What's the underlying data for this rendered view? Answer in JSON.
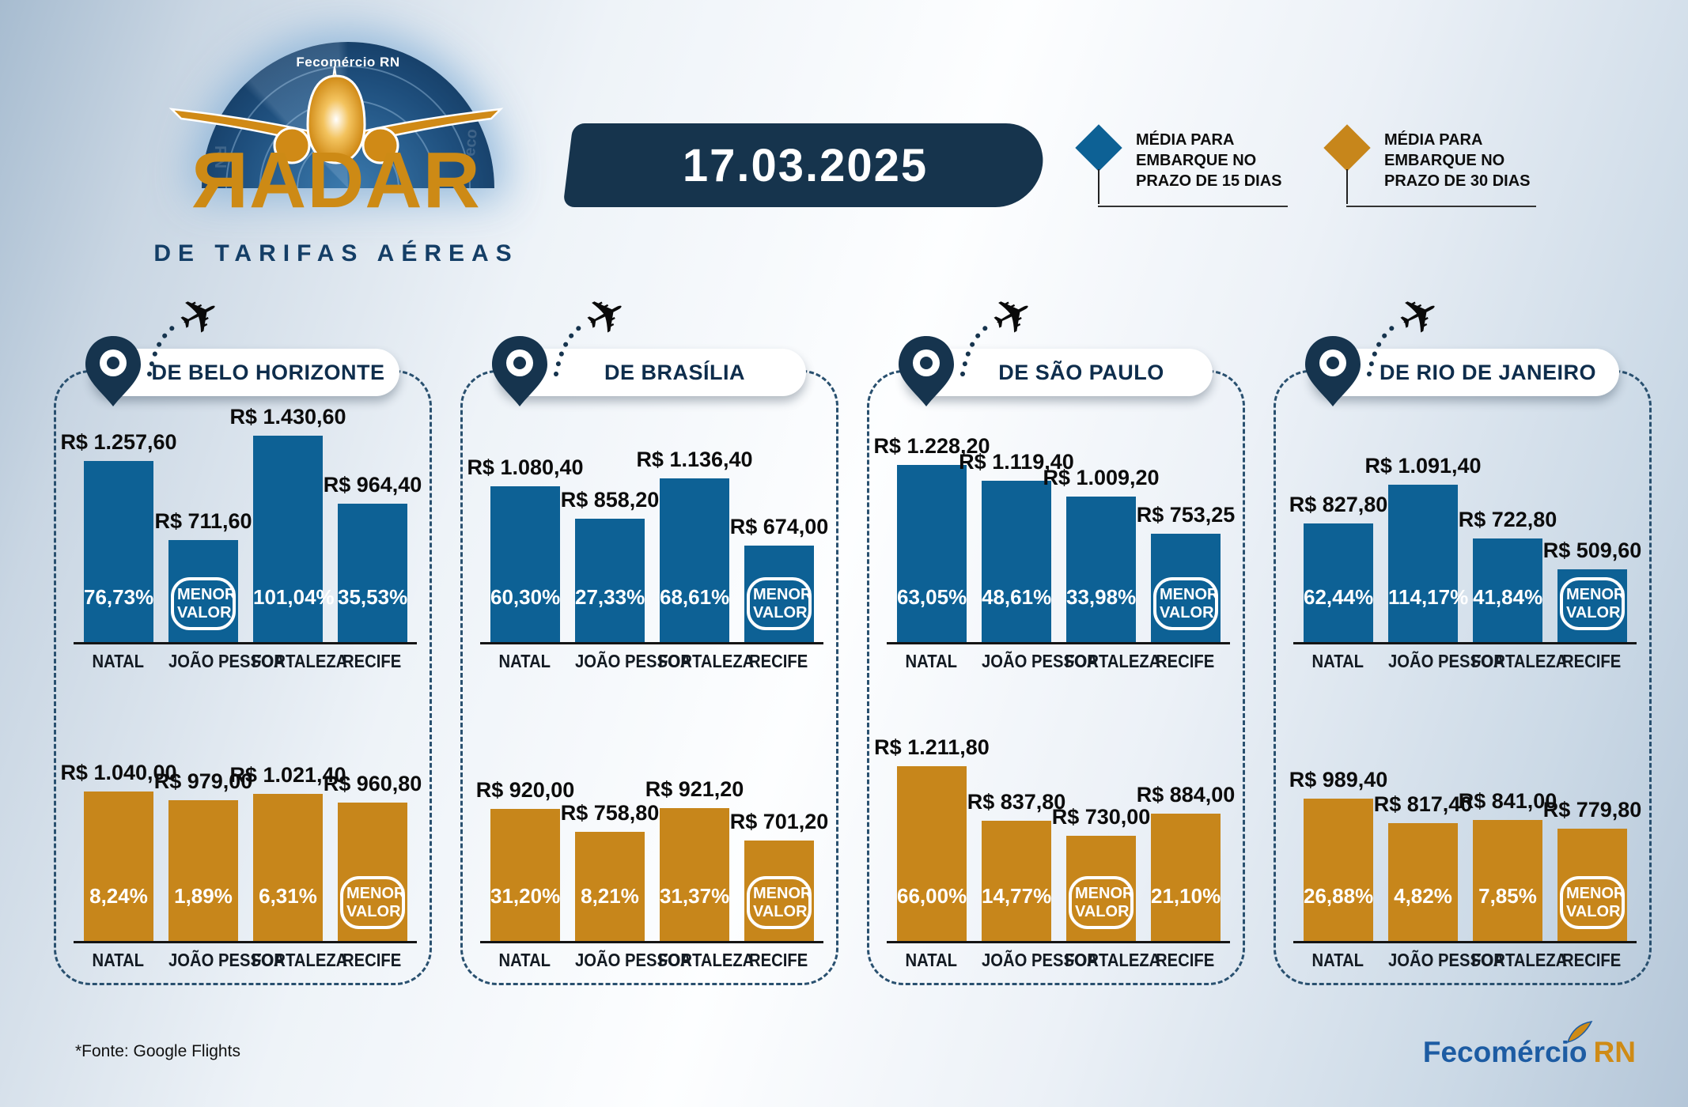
{
  "header": {
    "brand": "Fecomércio RN",
    "logo_title": "ЯADAR",
    "logo_subtitle": "DE TARIFAS AÉREAS",
    "watermark_left": "RN",
    "watermark_right": "Feco",
    "date": "17.03.2025",
    "legend": [
      {
        "color": "#0d6195",
        "label": "MÉDIA PARA EMBARQUE NO PRAZO DE 15 DIAS"
      },
      {
        "color": "#c7861b",
        "label": "MÉDIA PARA EMBARQUE NO PRAZO DE 30 DIAS"
      }
    ]
  },
  "menor_label": "MENOR VALOR",
  "chart_data": [
    {
      "type": "bar",
      "title": "DE BELO HORIZONTE",
      "categories": [
        "NATAL",
        "JOÃO PESSOA",
        "FORTALEZA",
        "RECIFE"
      ],
      "unit": "R$",
      "ylim": [
        0,
        1500
      ],
      "series": [
        {
          "name": "MÉDIA PARA EMBARQUE NO PRAZO DE 15 DIAS",
          "color": "#0d6195",
          "values": [
            1257.6,
            711.6,
            1430.6,
            964.4
          ],
          "labels": [
            "R$ 1.257,60",
            "R$ 711,60",
            "R$ 1.430,60",
            "R$ 964,40"
          ],
          "percents": [
            "76,73%",
            null,
            "101,04%",
            "35,53%"
          ],
          "menor_index": 1
        },
        {
          "name": "MÉDIA PARA EMBARQUE NO PRAZO DE 30 DIAS",
          "color": "#c7861b",
          "values": [
            1040.0,
            979.0,
            1021.4,
            960.8
          ],
          "labels": [
            "R$ 1.040,00",
            "R$ 979,00",
            "R$ 1.021,40",
            "R$ 960,80"
          ],
          "percents": [
            "8,24%",
            "1,89%",
            "6,31%",
            null
          ],
          "menor_index": 3
        }
      ]
    },
    {
      "type": "bar",
      "title": "DE BRASÍLIA",
      "categories": [
        "NATAL",
        "JOÃO PESSOA",
        "FORTALEZA",
        "RECIFE"
      ],
      "unit": "R$",
      "ylim": [
        0,
        1500
      ],
      "series": [
        {
          "name": "MÉDIA PARA EMBARQUE NO PRAZO DE 15 DIAS",
          "color": "#0d6195",
          "values": [
            1080.4,
            858.2,
            1136.4,
            674.0
          ],
          "labels": [
            "R$ 1.080,40",
            "R$ 858,20",
            "R$ 1.136,40",
            "R$ 674,00"
          ],
          "percents": [
            "60,30%",
            "27,33%",
            "68,61%",
            null
          ],
          "menor_index": 3
        },
        {
          "name": "MÉDIA PARA EMBARQUE NO PRAZO DE 30 DIAS",
          "color": "#c7861b",
          "values": [
            920.0,
            758.8,
            921.2,
            701.2
          ],
          "labels": [
            "R$ 920,00",
            "R$ 758,80",
            "R$ 921,20",
            "R$ 701,20"
          ],
          "percents": [
            "31,20%",
            "8,21%",
            "31,37%",
            null
          ],
          "menor_index": 3
        }
      ]
    },
    {
      "type": "bar",
      "title": "DE SÃO PAULO",
      "categories": [
        "NATAL",
        "JOÃO PESSOA",
        "FORTALEZA",
        "RECIFE"
      ],
      "unit": "R$",
      "ylim": [
        0,
        1500
      ],
      "series": [
        {
          "name": "MÉDIA PARA EMBARQUE NO PRAZO DE 15 DIAS",
          "color": "#0d6195",
          "values": [
            1228.2,
            1119.4,
            1009.2,
            753.25
          ],
          "labels": [
            "R$ 1.228,20",
            "R$ 1.119,40",
            "R$ 1.009,20",
            "R$ 753,25"
          ],
          "percents": [
            "63,05%",
            "48,61%",
            "33,98%",
            null
          ],
          "menor_index": 3
        },
        {
          "name": "MÉDIA PARA EMBARQUE NO PRAZO DE 30 DIAS",
          "color": "#c7861b",
          "values": [
            1211.8,
            837.8,
            730.0,
            884.0
          ],
          "labels": [
            "R$ 1.211,80",
            "R$ 837,80",
            "R$ 730,00",
            "R$ 884,00"
          ],
          "percents": [
            "66,00%",
            "14,77%",
            null,
            "21,10%"
          ],
          "menor_index": 2
        }
      ]
    },
    {
      "type": "bar",
      "title": "DE RIO DE JANEIRO",
      "categories": [
        "NATAL",
        "JOÃO PESSOA",
        "FORTALEZA",
        "RECIFE"
      ],
      "unit": "R$",
      "ylim": [
        0,
        1500
      ],
      "series": [
        {
          "name": "MÉDIA PARA EMBARQUE NO PRAZO DE 15 DIAS",
          "color": "#0d6195",
          "values": [
            827.8,
            1091.4,
            722.8,
            509.6
          ],
          "labels": [
            "R$ 827,80",
            "R$ 1.091,40",
            "R$ 722,80",
            "R$ 509,60"
          ],
          "percents": [
            "62,44%",
            "114,17%",
            "41,84%",
            null
          ],
          "menor_index": 3
        },
        {
          "name": "MÉDIA PARA EMBARQUE NO PRAZO DE 30 DIAS",
          "color": "#c7861b",
          "values": [
            989.4,
            817.4,
            841.0,
            779.8
          ],
          "labels": [
            "R$ 989,40",
            "R$ 817,40",
            "R$ 841,00",
            "R$ 779,80"
          ],
          "percents": [
            "26,88%",
            "4,82%",
            "7,85%",
            null
          ],
          "menor_index": 3
        }
      ]
    }
  ],
  "footer": {
    "source": "*Fonte: Google Flights",
    "brand_word1": "Fecomércio",
    "brand_word2": "RN"
  }
}
